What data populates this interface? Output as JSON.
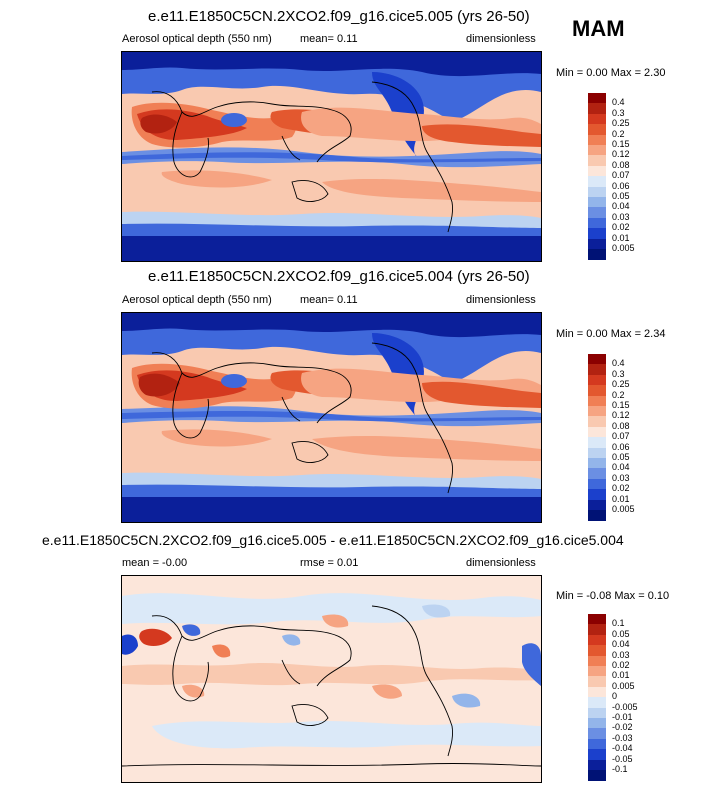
{
  "season_label": "MAM",
  "panels": [
    {
      "title": "e.e11.E1850C5CN.2XCO2.f09_g16.cice5.005 (yrs 26-50)",
      "left_label": "Aerosol optical depth (550 nm)",
      "mid_label": "mean=  0.11",
      "right_label": "dimensionless",
      "minmax": "Min =  0.00 Max =  2.30",
      "colorbar": {
        "labels": [
          "0.4",
          "0.3",
          "0.25",
          "0.2",
          "0.15",
          "0.12",
          "0.08",
          "0.07",
          "0.06",
          "0.05",
          "0.04",
          "0.03",
          "0.02",
          "0.01",
          "0.005"
        ],
        "colors": [
          "#8b0000",
          "#b22211",
          "#d4391f",
          "#e3582f",
          "#f07f55",
          "#f6a482",
          "#f9c9b0",
          "#fce6da",
          "#dbe9f8",
          "#bcd3f1",
          "#93b5ea",
          "#6b8fe3",
          "#3f68db",
          "#1b40cc",
          "#0b1f9a",
          "#001275"
        ]
      }
    },
    {
      "title": "e.e11.E1850C5CN.2XCO2.f09_g16.cice5.004 (yrs 26-50)",
      "left_label": "Aerosol optical depth (550 nm)",
      "mid_label": "mean=  0.11",
      "right_label": "dimensionless",
      "minmax": "Min =  0.00 Max =  2.34",
      "colorbar": {
        "labels": [
          "0.4",
          "0.3",
          "0.25",
          "0.2",
          "0.15",
          "0.12",
          "0.08",
          "0.07",
          "0.06",
          "0.05",
          "0.04",
          "0.03",
          "0.02",
          "0.01",
          "0.005"
        ],
        "colors": [
          "#8b0000",
          "#b22211",
          "#d4391f",
          "#e3582f",
          "#f07f55",
          "#f6a482",
          "#f9c9b0",
          "#fce6da",
          "#dbe9f8",
          "#bcd3f1",
          "#93b5ea",
          "#6b8fe3",
          "#3f68db",
          "#1b40cc",
          "#0b1f9a",
          "#001275"
        ]
      }
    },
    {
      "title": "e.e11.E1850C5CN.2XCO2.f09_g16.cice5.005 - e.e11.E1850C5CN.2XCO2.f09_g16.cice5.004",
      "left_label": "mean = -0.00",
      "mid_label": "rmse =  0.01",
      "right_label": "dimensionless",
      "minmax": "Min = -0.08 Max =  0.10",
      "colorbar": {
        "labels": [
          "0.1",
          "0.05",
          "0.04",
          "0.03",
          "0.02",
          "0.01",
          "0.005",
          "0",
          "-0.005",
          "-0.01",
          "-0.02",
          "-0.03",
          "-0.04",
          "-0.05",
          "-0.1"
        ],
        "colors": [
          "#8b0000",
          "#b22211",
          "#d4391f",
          "#e3582f",
          "#f07f55",
          "#f6a482",
          "#f9c9b0",
          "#fce6da",
          "#dbe9f8",
          "#bcd3f1",
          "#93b5ea",
          "#6b8fe3",
          "#3f68db",
          "#1b40cc",
          "#0b1f9a",
          "#001275"
        ]
      }
    }
  ]
}
